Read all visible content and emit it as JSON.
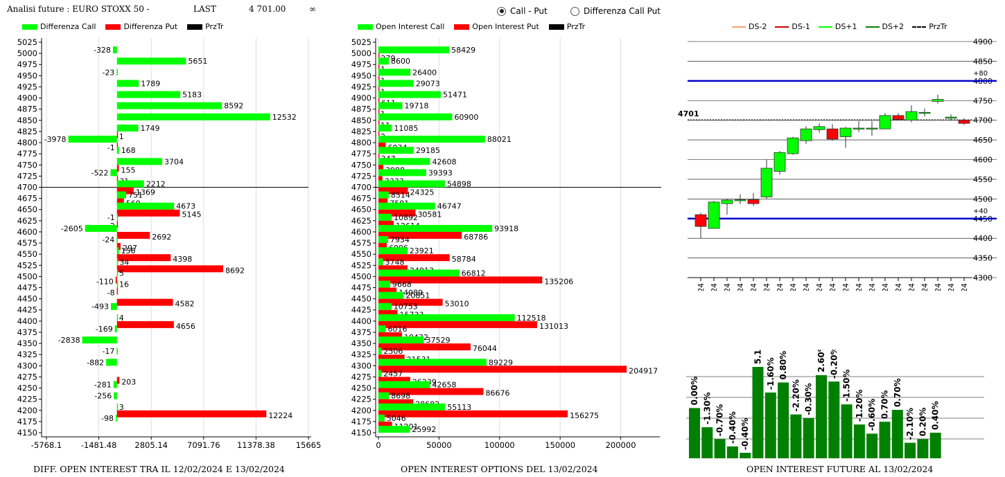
{
  "header": {
    "analysis_label": "Analisi future : EURO STOXX 50 -",
    "last_label": "LAST",
    "last_value": "4 701.00",
    "infinity_symbol": "∞",
    "radio_call_put": "Call - Put",
    "radio_diff": "Differenza Call Put",
    "radio_selected": "call_put"
  },
  "colors": {
    "green": "#00ff00",
    "red": "#ff0000",
    "dark_green": "#008000",
    "blue": "#0000cc"
  },
  "footers": {
    "left": "DIFF. OPEN INTEREST TRA IL 12/02/2024 E 13/02/2024",
    "middle": "OPEN INTEREST OPTIONS DEL 13/02/2024",
    "right": "OPEN INTEREST FUTURE AL 13/02/2024"
  },
  "chart_data": [
    {
      "id": "diff",
      "type": "bar",
      "orientation": "horizontal",
      "legend": [
        "Differenza Call",
        "Differenza Put",
        "PrzTr"
      ],
      "strikes": [
        5025,
        5000,
        4975,
        4950,
        4925,
        4900,
        4875,
        4850,
        4825,
        4800,
        4775,
        4750,
        4725,
        4700,
        4675,
        4650,
        4625,
        4600,
        4575,
        4550,
        4525,
        4500,
        4475,
        4450,
        4425,
        4400,
        4375,
        4350,
        4325,
        4300,
        4275,
        4250,
        4225,
        4200,
        4175,
        4150
      ],
      "call": [
        null,
        -328,
        5651,
        -23,
        1789,
        5183,
        8592,
        12532,
        1749,
        -3978,
        168,
        3704,
        -522,
        2212,
        751,
        4673,
        -1,
        -2605,
        -24,
        156,
        34,
        5,
        16,
        null,
        -493,
        4,
        -169,
        -2838,
        -17,
        -882,
        null,
        -281,
        -256,
        3,
        -98,
        null
      ],
      "put": [
        null,
        null,
        null,
        null,
        null,
        null,
        null,
        null,
        1,
        -1,
        null,
        155,
        31,
        1369,
        569,
        5145,
        -2,
        2692,
        297,
        4398,
        8692,
        -110,
        -8,
        4582,
        null,
        4656,
        null,
        null,
        null,
        null,
        203,
        null,
        null,
        12224,
        null,
        null
      ],
      "xticks": [
        "-5768.1",
        "-1481.48",
        "2805.14",
        "7091.76",
        "11378.38",
        "15665"
      ],
      "xlim": [
        -5768.1,
        15665
      ],
      "prz_tr": 4700
    },
    {
      "id": "oi",
      "type": "bar",
      "orientation": "horizontal",
      "legend": [
        "Open Interest Call",
        "Open Interest Put",
        "PrzTr"
      ],
      "strikes": [
        5025,
        5000,
        4975,
        4950,
        4925,
        4900,
        4875,
        4850,
        4825,
        4800,
        4775,
        4750,
        4725,
        4700,
        4675,
        4650,
        4625,
        4600,
        4575,
        4550,
        4525,
        4500,
        4475,
        4450,
        4425,
        4400,
        4375,
        4350,
        4325,
        4300,
        4275,
        4250,
        4225,
        4200,
        4175,
        4150
      ],
      "call": [
        null,
        58429,
        8600,
        26400,
        29073,
        51471,
        19718,
        60900,
        11085,
        88021,
        29185,
        42608,
        39393,
        54898,
        8514,
        46747,
        10892,
        93918,
        7934,
        23921,
        3748,
        66812,
        9668,
        20851,
        10753,
        112518,
        6016,
        37529,
        2506,
        89229,
        2457,
        42658,
        8698,
        55113,
        5046,
        25992
      ],
      "put": [
        null,
        279,
        1,
        1,
        1,
        611,
        1,
        11,
        2,
        6034,
        347,
        3988,
        3333,
        24325,
        7581,
        30581,
        12614,
        68786,
        6906,
        58784,
        24013,
        135206,
        14989,
        53010,
        15733,
        131013,
        19432,
        76044,
        21531,
        204917,
        26239,
        86676,
        28682,
        156275,
        11201,
        null
      ],
      "xticks": [
        "0",
        "50000",
        "100000",
        "150000",
        "200000"
      ],
      "xlim": [
        0,
        230000
      ],
      "prz_tr": 4700
    },
    {
      "id": "candles",
      "type": "candlestick",
      "legend": [
        "DS-2",
        "DS-1",
        "DS+1",
        "DS+2",
        "PrzTr"
      ],
      "dates": [
        "17/01/2024",
        "18/01/2024",
        "19/01/2024",
        "22/01/2024",
        "23/01/2024",
        "24/01/2024",
        "25/01/2024",
        "26/01/2024",
        "29/01/2024",
        "30/01/2024",
        "31/01/2024",
        "01/02/2024",
        "02/02/2024",
        "05/02/2024",
        "06/02/2024",
        "07/02/2024",
        "08/02/2024",
        "09/02/2024",
        "12/02/2024",
        "13/02/2024",
        "14/02/2024"
      ],
      "ohlc": [
        [
          4460,
          4465,
          4400,
          4430
        ],
        [
          4425,
          4495,
          4425,
          4492
        ],
        [
          4488,
          4500,
          4460,
          4497
        ],
        [
          4498,
          4512,
          4487,
          4498
        ],
        [
          4498,
          4515,
          4482,
          4488
        ],
        [
          4505,
          4600,
          4500,
          4578
        ],
        [
          4570,
          4622,
          4562,
          4618
        ],
        [
          4615,
          4658,
          4612,
          4655
        ],
        [
          4648,
          4685,
          4640,
          4678
        ],
        [
          4676,
          4692,
          4668,
          4684
        ],
        [
          4678,
          4690,
          4648,
          4652
        ],
        [
          4658,
          4683,
          4630,
          4680
        ],
        [
          4680,
          4698,
          4670,
          4680
        ],
        [
          4680,
          4698,
          4660,
          4680
        ],
        [
          4678,
          4718,
          4678,
          4712
        ],
        [
          4712,
          4718,
          4700,
          4702
        ],
        [
          4700,
          4738,
          4695,
          4722
        ],
        [
          4720,
          4730,
          4710,
          4720
        ],
        [
          4748,
          4765,
          4742,
          4753
        ],
        [
          4705,
          4715,
          4700,
          4708
        ],
        [
          4700,
          4705,
          4688,
          4692
        ]
      ],
      "yticks": [
        4300,
        4350,
        4400,
        4450,
        4500,
        4550,
        4600,
        4650,
        4700,
        4750,
        4800,
        4850,
        4900
      ],
      "ylim": [
        4300,
        4900
      ],
      "prz_tr": 4701,
      "prz_tr_label": "4701",
      "upper_level": 4800,
      "upper_label": "+80",
      "lower_level": 4450,
      "lower_label": "+40"
    },
    {
      "id": "oi_future",
      "type": "bar",
      "labels": [
        "0.00%",
        "-1.30%",
        "-0.70%",
        "-0.40%",
        "-0.40%",
        "5.10%",
        "-1.60%",
        "0.80%",
        "-2.20%",
        "-0.30%",
        "2.60%",
        "-0.20%",
        "-1.50%",
        "-1.20%",
        "-0.60%",
        "0.70%",
        "0.70%",
        "-2.10%",
        "0.20%",
        "0.40%"
      ],
      "values": [
        0.55,
        0.34,
        0.21,
        0.13,
        0.06,
        1.0,
        0.72,
        0.83,
        0.48,
        0.44,
        0.91,
        0.84,
        0.59,
        0.37,
        0.27,
        0.4,
        0.53,
        0.17,
        0.21,
        0.28
      ]
    }
  ]
}
